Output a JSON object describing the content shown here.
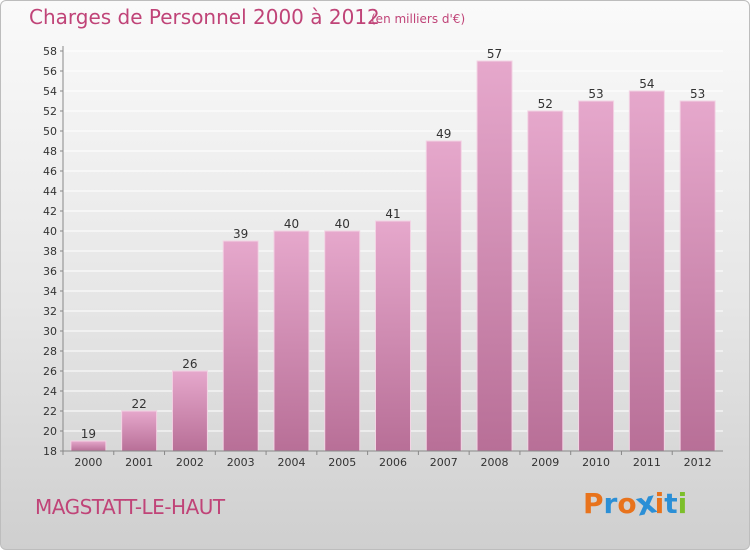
{
  "header": {
    "title": "Charges de Personnel 2000 à 2012",
    "subtitle": "(en milliers d'€)"
  },
  "footer": {
    "commune": "MAGSTATT-LE-HAUT",
    "brand": "Proxiti",
    "brand_colors": [
      "#e8731c",
      "#2b8fd6",
      "#e8731c",
      "#2b8fd6",
      "#e8731c",
      "#2b8fd6",
      "#7cbf2a"
    ]
  },
  "colors": {
    "accent": "#c04478",
    "bar_top": "#e6a8cc",
    "bar_bottom": "#b86f97",
    "grid": "#ffffff",
    "axis_text": "#333333"
  },
  "chart_data": {
    "type": "bar",
    "categories": [
      "2000",
      "2001",
      "2002",
      "2003",
      "2004",
      "2005",
      "2006",
      "2007",
      "2008",
      "2009",
      "2010",
      "2011",
      "2012"
    ],
    "values": [
      19,
      22,
      26,
      39,
      40,
      40,
      41,
      49,
      57,
      52,
      53,
      54,
      53
    ],
    "title": "Charges de Personnel 2000 à 2012",
    "subtitle": "(en milliers d'€)",
    "xlabel": "",
    "ylabel": "",
    "ylim": [
      18,
      58
    ],
    "ytick_step": 2,
    "grid": true,
    "data_labels": true
  }
}
